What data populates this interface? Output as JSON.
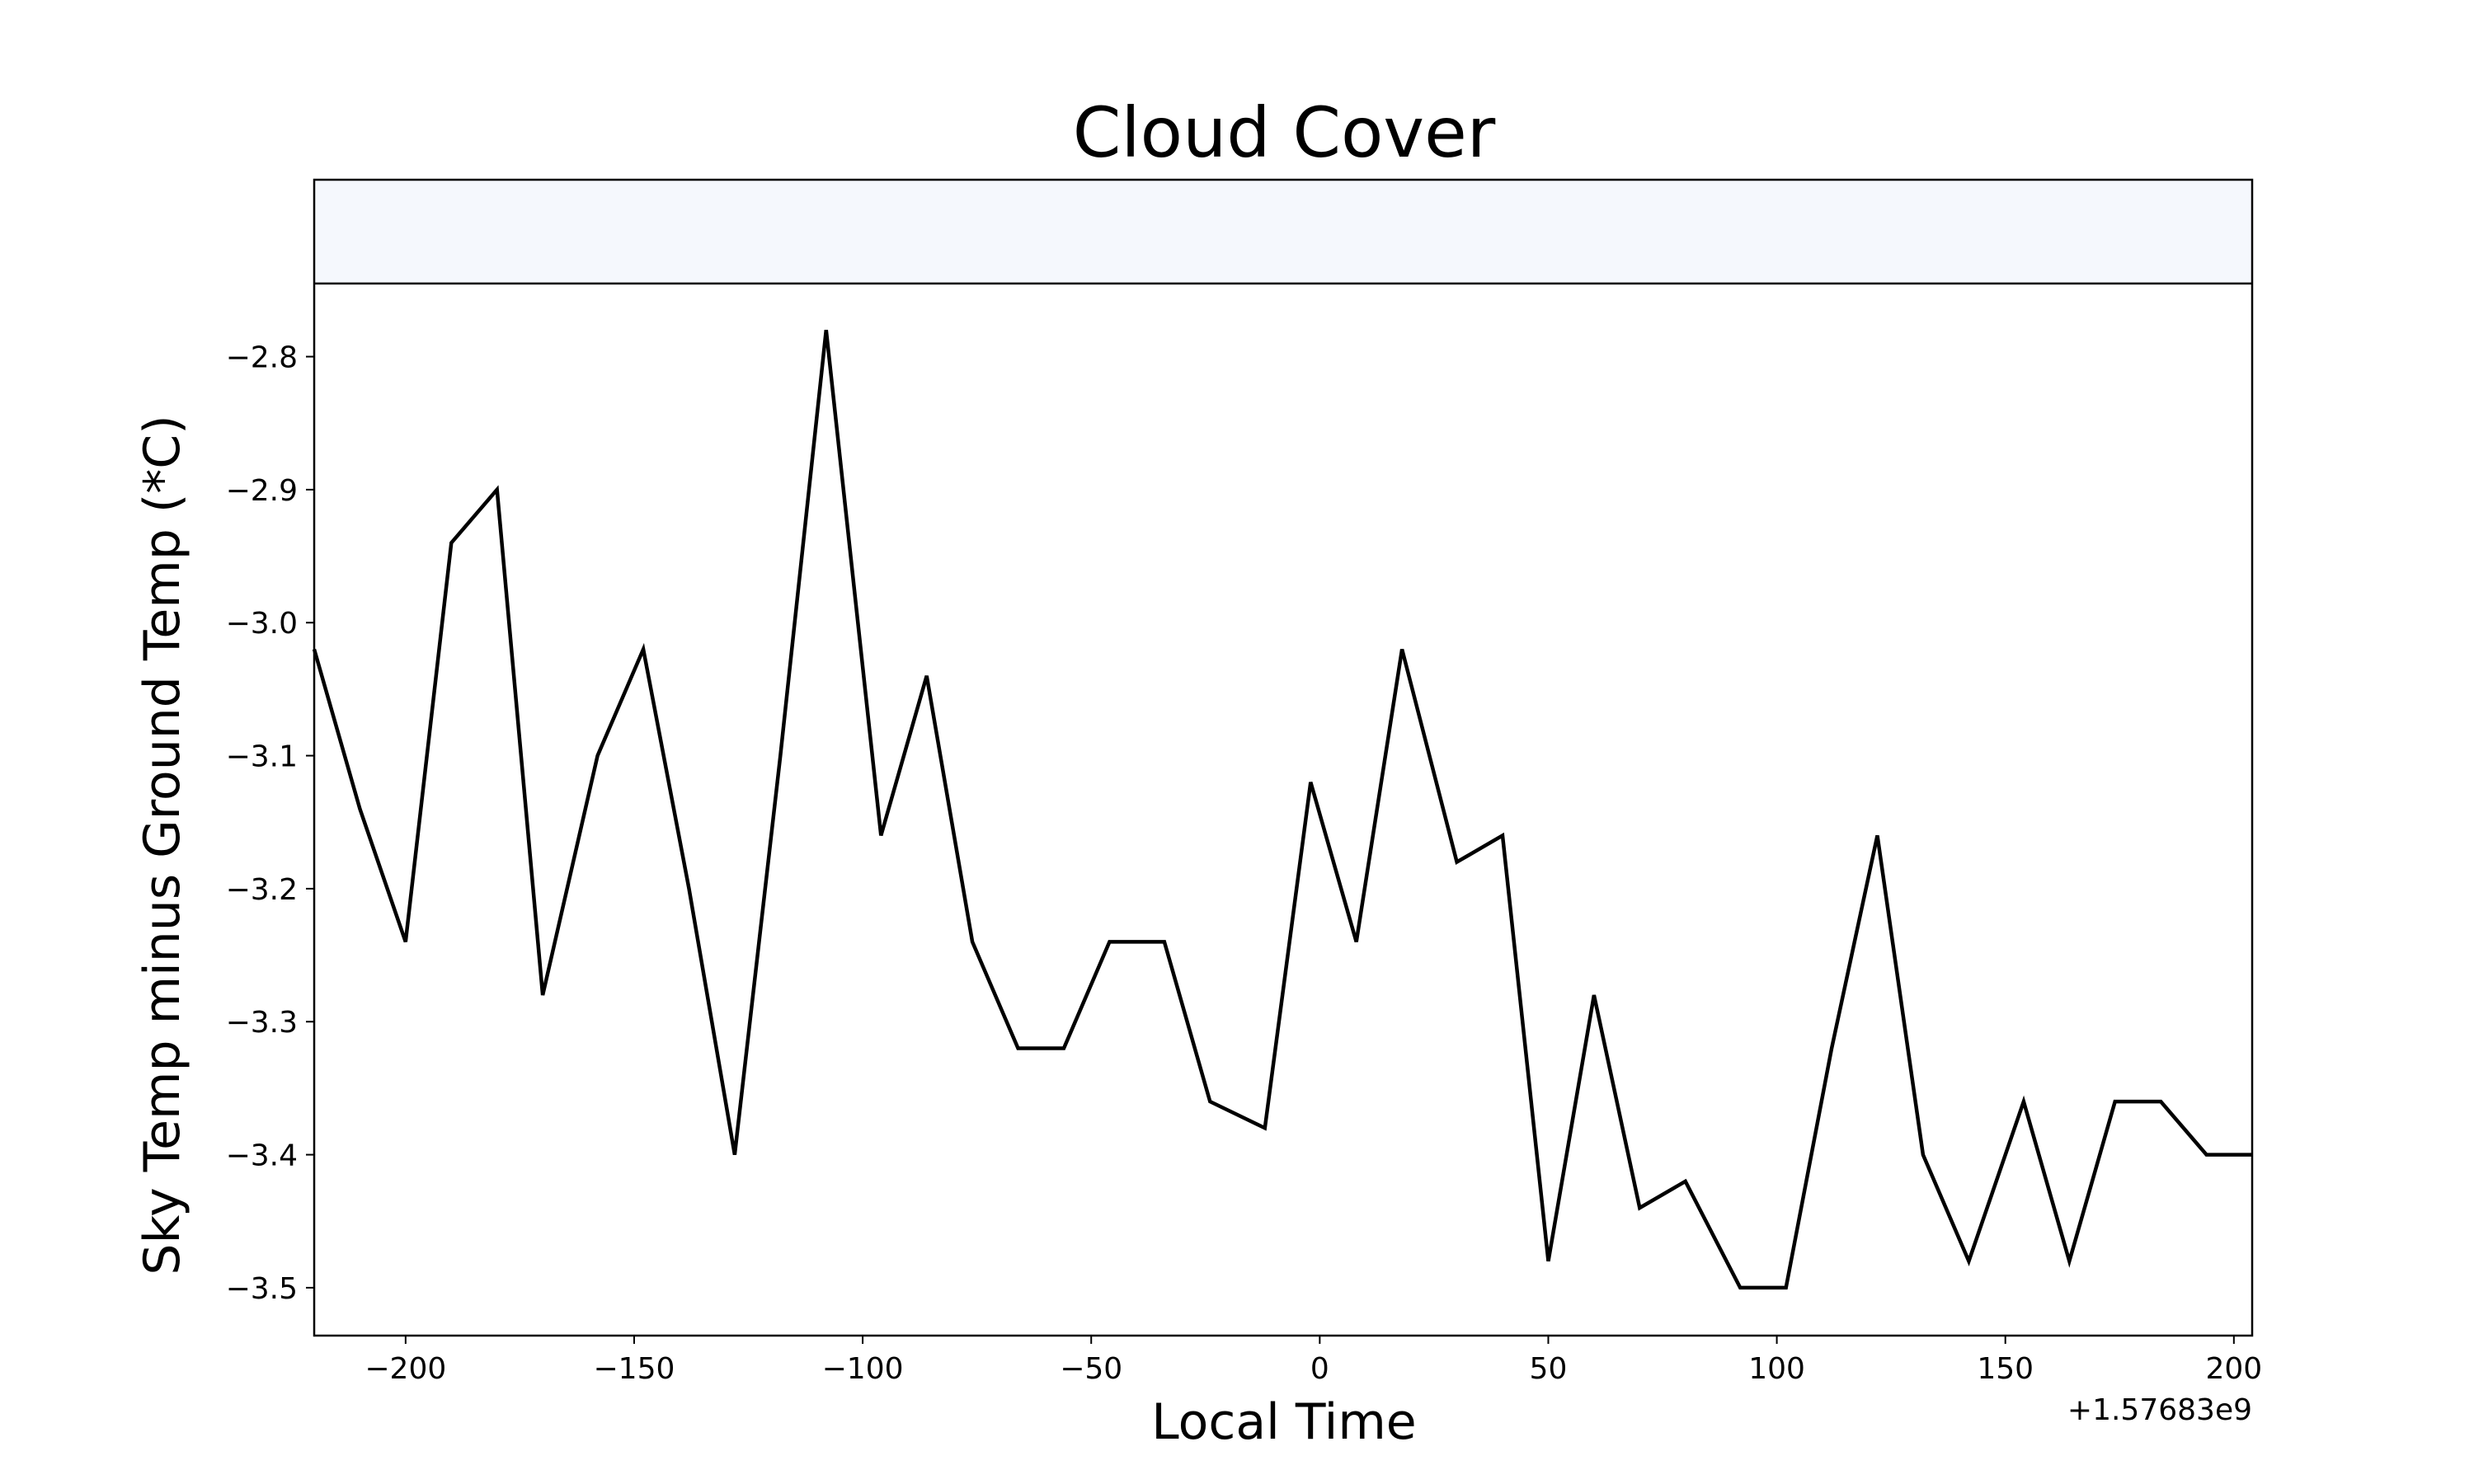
{
  "chart_data": {
    "type": "line",
    "title": "Cloud Cover",
    "xlabel": "Local Time",
    "ylabel": "Sky Temp minus Ground Temp (*C)",
    "x_offset_label": "+1.57683e9",
    "xlim": [
      -220,
      204
    ],
    "ylim": [
      -3.536,
      -2.667
    ],
    "band_ylim": [
      -2.745,
      -2.667
    ],
    "band_color": "#f5f8fd",
    "line_color": "#000000",
    "grid": false,
    "x_ticks": [
      -200,
      -150,
      -100,
      -50,
      0,
      50,
      100,
      150,
      200
    ],
    "x_tick_labels": [
      "−200",
      "−150",
      "−100",
      "−50",
      "0",
      "50",
      "100",
      "150",
      "200"
    ],
    "y_ticks": [
      -3.5,
      -3.4,
      -3.3,
      -3.2,
      -3.1,
      -3.0,
      -2.9,
      -2.8
    ],
    "y_tick_labels": [
      "−3.5",
      "−3.4",
      "−3.3",
      "−3.2",
      "−3.1",
      "−3.0",
      "−2.9",
      "−2.8"
    ],
    "series": [
      {
        "x": [
          -220,
          -210,
          -200,
          -190,
          -180,
          -170,
          -158,
          -148,
          -138,
          -128,
          -118,
          -108,
          -96,
          -86,
          -76,
          -66,
          -56,
          -46,
          -34,
          -24,
          -12,
          -2,
          8,
          18,
          30,
          40,
          50,
          60,
          70,
          80,
          92,
          102,
          112,
          122,
          132,
          142,
          154,
          164,
          174,
          184,
          194,
          204
        ],
        "y": [
          -3.02,
          -3.14,
          -3.24,
          -2.94,
          -2.9,
          -3.28,
          -3.1,
          -3.02,
          -3.2,
          -3.4,
          -3.1,
          -2.78,
          -3.16,
          -3.04,
          -3.24,
          -3.32,
          -3.32,
          -3.24,
          -3.24,
          -3.36,
          -3.38,
          -3.12,
          -3.24,
          -3.02,
          -3.18,
          -3.16,
          -3.48,
          -3.28,
          -3.44,
          -3.42,
          -3.5,
          -3.5,
          -3.32,
          -3.16,
          -3.4,
          -3.48,
          -3.36,
          -3.48,
          -3.36,
          -3.36,
          -3.4,
          -3.4
        ]
      }
    ]
  }
}
